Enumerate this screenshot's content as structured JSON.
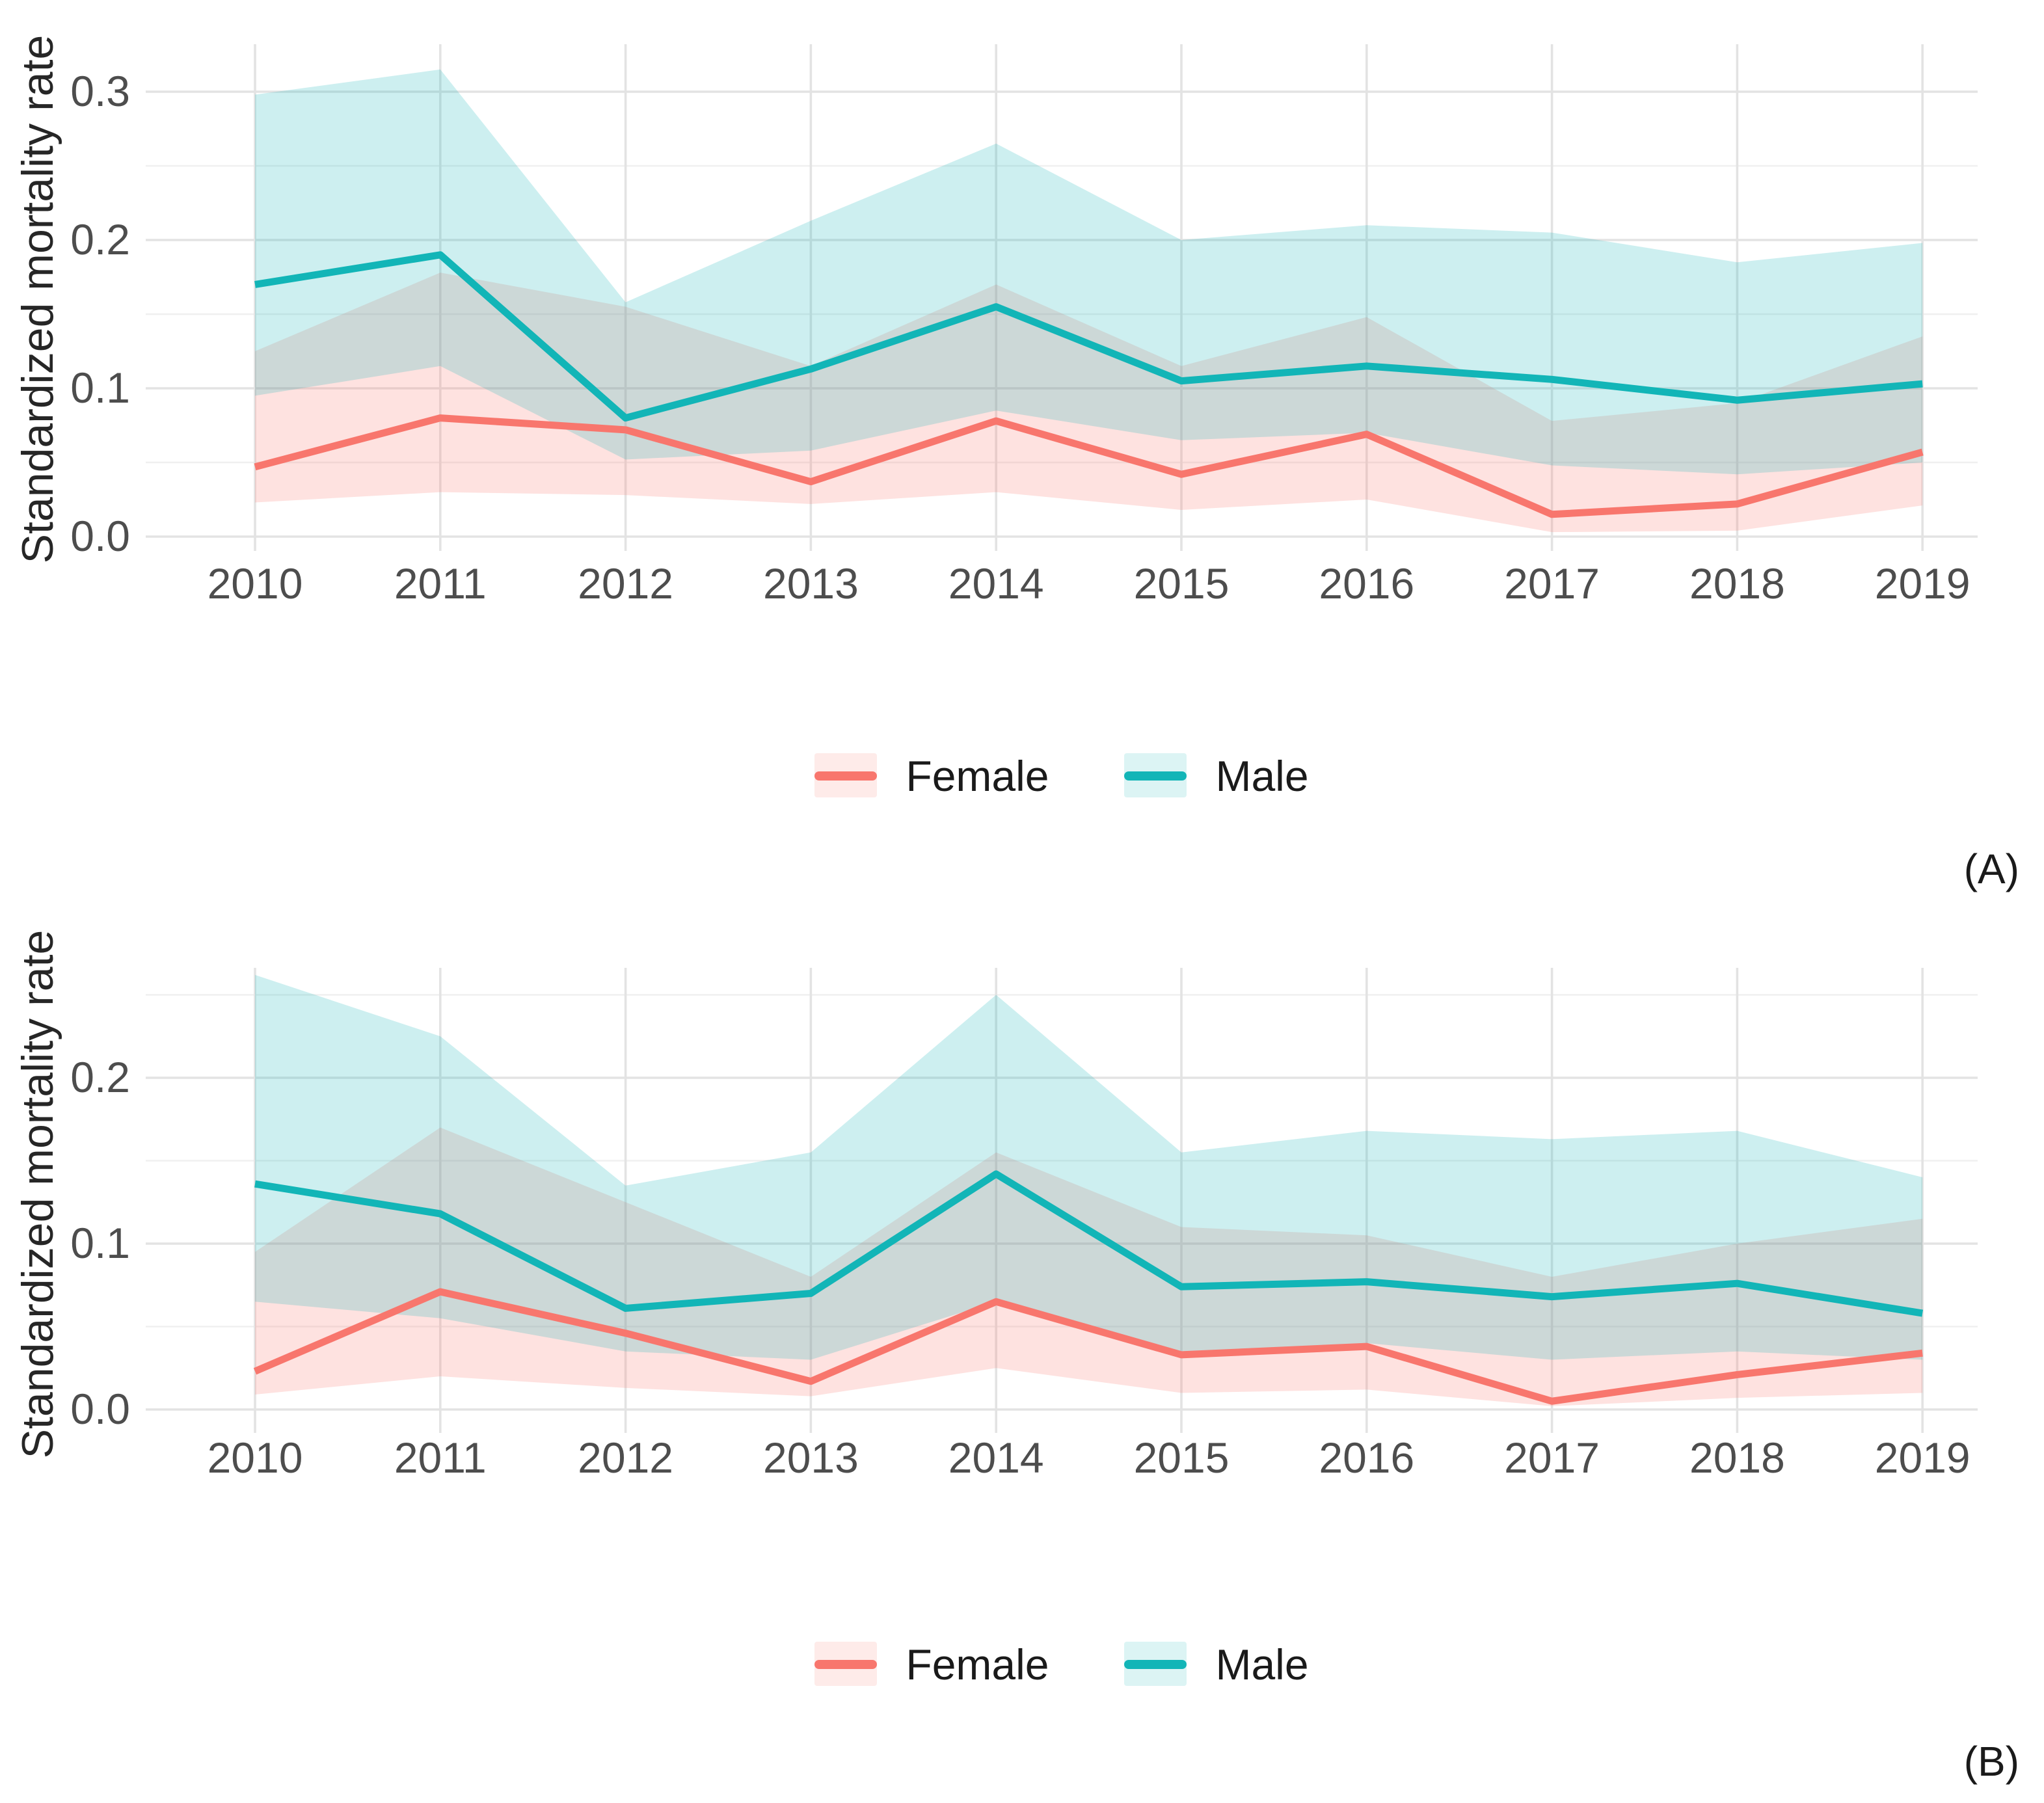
{
  "figure": {
    "background": "#ffffff",
    "axis_title_color": "#262626",
    "tick_label_color": "#4d4d4d",
    "major_gridline_color": "#e3e3e3",
    "minor_gridline_color": "#f0f0f0",
    "band_opacity": 0.21
  },
  "chart_data": [
    {
      "id": "A",
      "type": "line",
      "panel_label": "(A)",
      "title": "",
      "xlabel": "",
      "ylabel": "Standardized mortality rate",
      "grid": true,
      "legend_position": "bottom-center",
      "x": [
        2010,
        2011,
        2012,
        2013,
        2014,
        2015,
        2016,
        2017,
        2018,
        2019
      ],
      "y_ticks": [
        "0.0",
        "0.1",
        "0.2",
        "0.3"
      ],
      "y_tick_values": [
        0.0,
        0.1,
        0.2,
        0.3
      ],
      "y_minor_gridlines": [
        0.05,
        0.15,
        0.25
      ],
      "ylim": [
        -0.013,
        0.332
      ],
      "series": [
        {
          "name": "Female",
          "color": "#F8766D",
          "values": [
            0.047,
            0.08,
            0.072,
            0.037,
            0.078,
            0.042,
            0.069,
            0.015,
            0.022,
            0.057
          ],
          "ci_lower": [
            0.023,
            0.03,
            0.028,
            0.022,
            0.03,
            0.018,
            0.025,
            0.003,
            0.004,
            0.021
          ],
          "ci_upper": [
            0.125,
            0.178,
            0.155,
            0.115,
            0.17,
            0.115,
            0.148,
            0.078,
            0.09,
            0.135
          ]
        },
        {
          "name": "Male",
          "color": "#12B5B7",
          "values": [
            0.17,
            0.19,
            0.08,
            0.113,
            0.155,
            0.105,
            0.115,
            0.106,
            0.092,
            0.103
          ],
          "ci_lower": [
            0.095,
            0.115,
            0.052,
            0.058,
            0.085,
            0.065,
            0.07,
            0.048,
            0.042,
            0.05
          ],
          "ci_upper": [
            0.298,
            0.315,
            0.158,
            0.213,
            0.265,
            0.2,
            0.21,
            0.205,
            0.185,
            0.198
          ]
        }
      ]
    },
    {
      "id": "B",
      "type": "line",
      "panel_label": "(B)",
      "title": "",
      "xlabel": "",
      "ylabel": "Standardized mortality rate",
      "grid": true,
      "legend_position": "bottom-center",
      "x": [
        2010,
        2011,
        2012,
        2013,
        2014,
        2015,
        2016,
        2017,
        2018,
        2019
      ],
      "y_ticks": [
        "0.0",
        "0.1",
        "0.2"
      ],
      "y_tick_values": [
        0.0,
        0.1,
        0.2
      ],
      "y_minor_gridlines": [
        0.05,
        0.15,
        0.25
      ],
      "ylim": [
        -0.014,
        0.266
      ],
      "series": [
        {
          "name": "Female",
          "color": "#F8766D",
          "values": [
            0.023,
            0.071,
            0.046,
            0.017,
            0.065,
            0.033,
            0.038,
            0.005,
            0.021,
            0.034
          ],
          "ci_lower": [
            0.009,
            0.02,
            0.013,
            0.008,
            0.025,
            0.01,
            0.012,
            0.002,
            0.007,
            0.01
          ],
          "ci_upper": [
            0.095,
            0.17,
            0.125,
            0.08,
            0.155,
            0.11,
            0.105,
            0.08,
            0.1,
            0.115
          ]
        },
        {
          "name": "Male",
          "color": "#12B5B7",
          "values": [
            0.136,
            0.118,
            0.061,
            0.07,
            0.142,
            0.074,
            0.077,
            0.068,
            0.076,
            0.058
          ],
          "ci_lower": [
            0.065,
            0.055,
            0.035,
            0.03,
            0.065,
            0.035,
            0.04,
            0.03,
            0.035,
            0.03
          ],
          "ci_upper": [
            0.262,
            0.225,
            0.135,
            0.155,
            0.25,
            0.155,
            0.168,
            0.163,
            0.168,
            0.14
          ]
        }
      ]
    }
  ]
}
